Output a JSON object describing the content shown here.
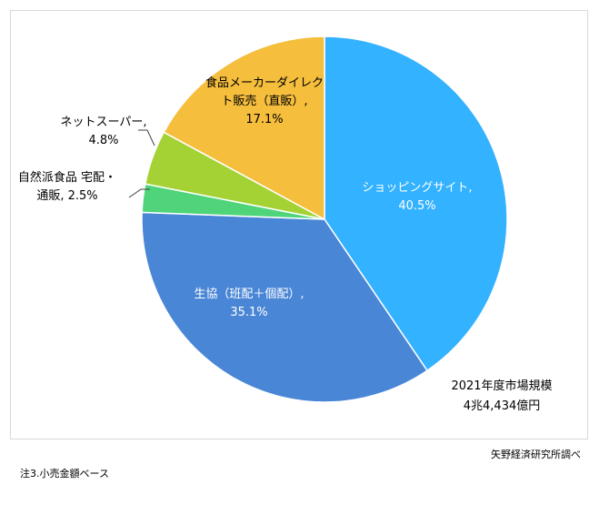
{
  "chart_data": {
    "type": "pie",
    "start_angle_deg": 0,
    "direction": "clockwise",
    "slices": [
      {
        "label_lines": [
          "ショッピングサイト,",
          "40.5%"
        ],
        "category": "ショッピングサイト",
        "value": 40.5,
        "value_text": "40.5%",
        "color": "#33B2FF",
        "label_color": "#ffffff"
      },
      {
        "label_lines": [
          "生協（班配＋個配）,",
          "35.1%"
        ],
        "category": "生協（班配＋個配）",
        "value": 35.1,
        "value_text": "35.1%",
        "color": "#4A86D6",
        "label_color": "#ffffff"
      },
      {
        "label_lines": [
          "自然派食品 宅配・",
          "通販, 2.5%"
        ],
        "category": "自然派食品 宅配・通販",
        "value": 2.5,
        "value_text": "2.5%",
        "color": "#4FD47A",
        "label_color": "#000000"
      },
      {
        "label_lines": [
          "ネットスーパー,",
          "4.8%"
        ],
        "category": "ネットスーパー",
        "value": 4.8,
        "value_text": "4.8%",
        "color": "#A4D234",
        "label_color": "#000000"
      },
      {
        "label_lines": [
          "食品メーカーダイレク",
          "ト販売（直販）,",
          "17.1%"
        ],
        "category": "食品メーカーダイレクト販売（直販）",
        "value": 17.1,
        "value_text": "17.1%",
        "color": "#F5BE3C",
        "label_color": "#000000"
      }
    ],
    "annotation": {
      "lines": [
        "2021年度市場規模",
        "4兆4,434億円"
      ]
    }
  },
  "source": "矢野経済研究所調べ",
  "footnote": "注3.小売金額ベース"
}
